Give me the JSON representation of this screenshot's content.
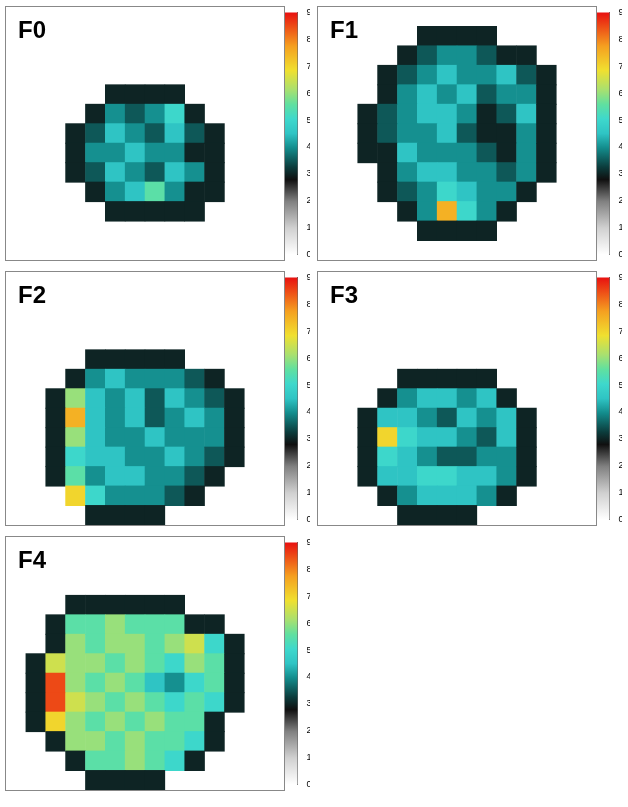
{
  "chart_data": [
    {
      "type": "heatmap",
      "title": "F0",
      "tick_labels": false,
      "color_range": [
        0,
        9
      ],
      "color_ticks": [
        0,
        1,
        2,
        3,
        4,
        5,
        6,
        7,
        8,
        9
      ],
      "cells": [
        [
          null,
          null,
          null,
          null,
          null,
          null,
          null,
          null,
          null,
          null,
          null,
          null,
          null,
          null
        ],
        [
          null,
          null,
          null,
          null,
          null,
          null,
          null,
          null,
          null,
          null,
          null,
          null,
          null,
          null
        ],
        [
          null,
          null,
          null,
          null,
          null,
          null,
          null,
          null,
          null,
          null,
          null,
          null,
          null,
          null
        ],
        [
          null,
          null,
          null,
          null,
          null,
          null,
          null,
          null,
          null,
          null,
          null,
          null,
          null,
          null
        ],
        [
          null,
          null,
          null,
          null,
          null,
          3,
          3,
          3,
          3,
          null,
          null,
          null,
          null,
          null
        ],
        [
          null,
          null,
          null,
          null,
          3,
          4,
          3.5,
          4,
          5,
          3,
          null,
          null,
          null,
          null
        ],
        [
          null,
          null,
          null,
          3,
          3.5,
          4.5,
          4,
          3.5,
          4.5,
          3.5,
          3,
          null,
          null,
          null
        ],
        [
          null,
          null,
          null,
          3,
          4,
          4,
          4.5,
          4,
          4,
          3,
          3,
          null,
          null,
          null
        ],
        [
          null,
          null,
          null,
          3,
          3.5,
          4.5,
          4,
          3.5,
          4.5,
          4,
          3,
          null,
          null,
          null
        ],
        [
          null,
          null,
          null,
          null,
          3,
          4,
          4.5,
          5.5,
          4,
          3,
          3,
          null,
          null,
          null
        ],
        [
          null,
          null,
          null,
          null,
          null,
          3,
          3,
          3,
          3,
          3,
          null,
          null,
          null,
          null
        ],
        [
          null,
          null,
          null,
          null,
          null,
          null,
          null,
          null,
          null,
          null,
          null,
          null,
          null,
          null
        ],
        [
          null,
          null,
          null,
          null,
          null,
          null,
          null,
          null,
          null,
          null,
          null,
          null,
          null,
          null
        ]
      ]
    },
    {
      "type": "heatmap",
      "title": "F1",
      "tick_labels": false,
      "color_range": [
        0,
        9
      ],
      "color_ticks": [
        0,
        1,
        2,
        3,
        4,
        5,
        6,
        7,
        8,
        9
      ],
      "cells": [
        [
          null,
          null,
          null,
          null,
          null,
          null,
          null,
          null,
          null,
          null,
          null,
          null,
          null,
          null
        ],
        [
          null,
          null,
          null,
          null,
          null,
          3,
          3,
          3,
          3,
          null,
          null,
          null,
          null,
          null
        ],
        [
          null,
          null,
          null,
          null,
          3,
          3.5,
          4,
          4,
          3.5,
          3,
          3,
          null,
          null,
          null
        ],
        [
          null,
          null,
          null,
          3,
          3.5,
          4,
          4.5,
          4,
          4,
          4.5,
          3.5,
          3,
          null,
          null
        ],
        [
          null,
          null,
          null,
          3,
          4,
          4.5,
          4,
          4.5,
          3.5,
          4,
          4,
          3,
          null,
          null
        ],
        [
          null,
          null,
          3,
          3.5,
          4,
          4.5,
          4.5,
          4,
          3,
          3.5,
          4.5,
          3,
          null,
          null
        ],
        [
          null,
          null,
          3,
          3.5,
          4,
          4,
          4.5,
          3.5,
          3,
          3,
          4,
          3,
          null,
          null
        ],
        [
          null,
          null,
          3,
          3,
          4.5,
          4,
          4,
          4,
          3.5,
          3,
          4,
          3,
          null,
          null
        ],
        [
          null,
          null,
          null,
          3,
          4,
          4.5,
          4.5,
          4,
          4,
          3.5,
          4,
          3,
          null,
          null
        ],
        [
          null,
          null,
          null,
          3,
          3.5,
          4,
          5,
          4.5,
          4,
          4,
          3,
          null,
          null,
          null
        ],
        [
          null,
          null,
          null,
          null,
          3,
          4,
          7.5,
          5,
          4,
          3,
          null,
          null,
          null,
          null
        ],
        [
          null,
          null,
          null,
          null,
          null,
          3,
          3,
          3,
          3,
          null,
          null,
          null,
          null,
          null
        ],
        [
          null,
          null,
          null,
          null,
          null,
          null,
          null,
          null,
          null,
          null,
          null,
          null,
          null,
          null
        ]
      ]
    },
    {
      "type": "heatmap",
      "title": "F2",
      "tick_labels": false,
      "color_range": [
        0,
        9
      ],
      "color_ticks": [
        0,
        1,
        2,
        3,
        4,
        5,
        6,
        7,
        8,
        9
      ],
      "cells": [
        [
          null,
          null,
          null,
          null,
          null,
          null,
          null,
          null,
          null,
          null,
          null,
          null,
          null,
          null
        ],
        [
          null,
          null,
          null,
          null,
          null,
          null,
          null,
          null,
          null,
          null,
          null,
          null,
          null,
          null
        ],
        [
          null,
          null,
          null,
          null,
          null,
          null,
          null,
          null,
          null,
          null,
          null,
          null,
          null,
          null
        ],
        [
          null,
          null,
          null,
          null,
          null,
          null,
          null,
          null,
          null,
          null,
          null,
          null,
          null,
          null
        ],
        [
          null,
          null,
          null,
          null,
          3,
          3,
          3,
          3,
          3,
          null,
          null,
          null,
          null,
          null
        ],
        [
          null,
          null,
          null,
          3,
          4,
          4.5,
          4,
          4,
          4,
          3.5,
          3,
          null,
          null,
          null
        ],
        [
          null,
          null,
          3,
          6,
          4.5,
          4,
          4.5,
          3.5,
          4.5,
          4,
          3.5,
          3,
          null,
          null
        ],
        [
          null,
          null,
          3,
          7.5,
          4.5,
          4,
          4.5,
          3.5,
          4,
          4.5,
          4,
          3,
          null,
          null
        ],
        [
          null,
          null,
          3,
          6,
          4.5,
          4,
          4,
          4.5,
          4,
          4,
          4,
          3,
          null,
          null
        ],
        [
          null,
          null,
          3,
          5,
          4.5,
          4.5,
          4,
          4,
          4.5,
          4,
          3.5,
          3,
          null,
          null
        ],
        [
          null,
          null,
          3,
          5.5,
          4,
          4.5,
          4.5,
          4,
          4,
          3.5,
          3,
          null,
          null,
          null
        ],
        [
          null,
          null,
          null,
          7,
          5,
          4,
          4,
          4,
          3.5,
          3,
          null,
          null,
          null,
          null
        ],
        [
          null,
          null,
          null,
          null,
          3,
          3,
          3,
          3,
          null,
          null,
          null,
          null,
          null,
          null
        ]
      ]
    },
    {
      "type": "heatmap",
      "title": "F3",
      "tick_labels": false,
      "color_range": [
        0,
        9
      ],
      "color_ticks": [
        0,
        1,
        2,
        3,
        4,
        5,
        6,
        7,
        8,
        9
      ],
      "cells": [
        [
          null,
          null,
          null,
          null,
          null,
          null,
          null,
          null,
          null,
          null,
          null,
          null,
          null,
          null
        ],
        [
          null,
          null,
          null,
          null,
          null,
          null,
          null,
          null,
          null,
          null,
          null,
          null,
          null,
          null
        ],
        [
          null,
          null,
          null,
          null,
          null,
          null,
          null,
          null,
          null,
          null,
          null,
          null,
          null,
          null
        ],
        [
          null,
          null,
          null,
          null,
          null,
          null,
          null,
          null,
          null,
          null,
          null,
          null,
          null,
          null
        ],
        [
          null,
          null,
          null,
          null,
          null,
          null,
          null,
          null,
          null,
          null,
          null,
          null,
          null,
          null
        ],
        [
          null,
          null,
          null,
          null,
          3,
          3,
          3,
          3,
          3,
          null,
          null,
          null,
          null,
          null
        ],
        [
          null,
          null,
          null,
          3,
          4,
          4.5,
          4.5,
          4,
          4.5,
          3,
          null,
          null,
          null,
          null
        ],
        [
          null,
          null,
          3,
          4.5,
          4.5,
          4,
          3.5,
          4.5,
          4,
          4.5,
          3,
          null,
          null,
          null
        ],
        [
          null,
          null,
          3,
          7,
          5,
          4.5,
          4.5,
          4,
          3.5,
          4.5,
          3,
          null,
          null,
          null
        ],
        [
          null,
          null,
          3,
          5,
          4.5,
          4,
          3.5,
          3.5,
          4,
          4,
          3,
          null,
          null,
          null
        ],
        [
          null,
          null,
          3,
          4.5,
          4.5,
          5,
          5,
          4.5,
          4.5,
          4,
          3,
          null,
          null,
          null
        ],
        [
          null,
          null,
          null,
          3,
          4,
          4.5,
          4.5,
          4.5,
          4,
          3,
          null,
          null,
          null,
          null
        ],
        [
          null,
          null,
          null,
          null,
          3,
          3,
          3,
          3,
          null,
          null,
          null,
          null,
          null,
          null
        ]
      ]
    },
    {
      "type": "heatmap",
      "title": "F4",
      "tick_labels": false,
      "color_range": [
        0,
        9
      ],
      "color_ticks": [
        0,
        1,
        2,
        3,
        4,
        5,
        6,
        7,
        8,
        9
      ],
      "cells": [
        [
          null,
          null,
          null,
          null,
          null,
          null,
          null,
          null,
          null,
          null,
          null,
          null,
          null,
          null
        ],
        [
          null,
          null,
          null,
          null,
          null,
          null,
          null,
          null,
          null,
          null,
          null,
          null,
          null,
          null
        ],
        [
          null,
          null,
          null,
          null,
          null,
          null,
          null,
          null,
          null,
          null,
          null,
          null,
          null,
          null
        ],
        [
          null,
          null,
          null,
          3,
          3,
          3,
          3,
          3,
          3,
          null,
          null,
          null,
          null,
          null
        ],
        [
          null,
          null,
          3,
          5.5,
          5.5,
          6,
          5.5,
          5.5,
          5.5,
          3,
          3,
          null,
          null,
          null
        ],
        [
          null,
          null,
          3,
          6,
          5.5,
          6,
          6,
          5.5,
          6,
          6.5,
          5,
          3,
          null,
          null
        ],
        [
          null,
          3,
          6.5,
          6,
          6,
          5.5,
          6,
          5.5,
          5,
          6,
          5.5,
          3,
          null,
          null
        ],
        [
          null,
          3,
          8.5,
          6,
          5.5,
          6,
          5.5,
          4.5,
          4,
          5,
          5.5,
          3,
          null,
          null
        ],
        [
          null,
          3,
          8.5,
          6.5,
          6,
          5.5,
          6,
          5.5,
          5,
          5.5,
          5,
          3,
          null,
          null
        ],
        [
          null,
          3,
          7,
          6,
          5.5,
          6,
          5.5,
          6,
          5.5,
          5.5,
          3,
          null,
          null,
          null
        ],
        [
          null,
          null,
          3,
          6,
          6,
          5.5,
          6,
          5.5,
          5.5,
          5,
          3,
          null,
          null,
          null
        ],
        [
          null,
          null,
          null,
          3,
          5.5,
          5.5,
          6,
          5.5,
          5,
          3,
          null,
          null,
          null,
          null
        ],
        [
          null,
          null,
          null,
          null,
          3,
          3,
          3,
          3,
          null,
          null,
          null,
          null,
          null,
          null
        ]
      ]
    }
  ]
}
